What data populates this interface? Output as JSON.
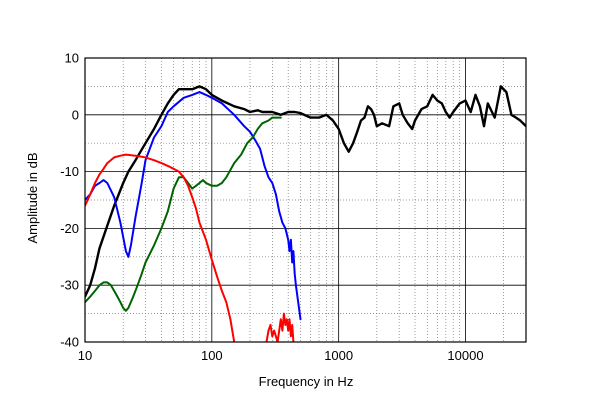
{
  "chart_data": {
    "type": "line",
    "title": "",
    "xlabel": "Frequency in Hz",
    "ylabel": "Amplitude in dB",
    "x_scale": "log",
    "xlim": [
      10,
      30000
    ],
    "ylim": [
      -40,
      10
    ],
    "x_ticks": [
      10,
      100,
      1000,
      10000
    ],
    "x_tick_labels": [
      "10",
      "100",
      "1000",
      "10000"
    ],
    "y_ticks": [
      10,
      0,
      -10,
      -20,
      -30,
      -40
    ],
    "y_tick_labels": [
      "10",
      "0",
      "-10",
      "-20",
      "-30",
      "-40"
    ],
    "grid": true,
    "legend": "none",
    "series": [
      {
        "color": "#000000",
        "points": [
          [
            10,
            -32
          ],
          [
            11,
            -30
          ],
          [
            12,
            -27
          ],
          [
            13,
            -23.5
          ],
          [
            15,
            -19.5
          ],
          [
            17,
            -16
          ],
          [
            20,
            -12
          ],
          [
            22,
            -10
          ],
          [
            25,
            -8
          ],
          [
            30,
            -5
          ],
          [
            35,
            -2.5
          ],
          [
            40,
            0
          ],
          [
            45,
            2
          ],
          [
            50,
            3.5
          ],
          [
            55,
            4.5
          ],
          [
            60,
            4.5
          ],
          [
            70,
            4.5
          ],
          [
            80,
            5
          ],
          [
            90,
            4.5
          ],
          [
            100,
            3.5
          ],
          [
            120,
            2.5
          ],
          [
            150,
            1.5
          ],
          [
            180,
            1
          ],
          [
            200,
            0.5
          ],
          [
            230,
            0.8
          ],
          [
            250,
            0.5
          ],
          [
            300,
            0.5
          ],
          [
            350,
            0
          ],
          [
            400,
            0.5
          ],
          [
            450,
            0.5
          ],
          [
            500,
            0.3
          ],
          [
            600,
            -0.5
          ],
          [
            700,
            -0.5
          ],
          [
            800,
            0
          ],
          [
            900,
            -1
          ],
          [
            1000,
            -2.5
          ],
          [
            1100,
            -5
          ],
          [
            1200,
            -6.5
          ],
          [
            1300,
            -5
          ],
          [
            1400,
            -3
          ],
          [
            1500,
            -1
          ],
          [
            1600,
            -0.5
          ],
          [
            1700,
            1.5
          ],
          [
            1800,
            1
          ],
          [
            1900,
            0
          ],
          [
            2000,
            -2
          ],
          [
            2200,
            -1.5
          ],
          [
            2500,
            -2
          ],
          [
            2700,
            1.5
          ],
          [
            3000,
            2
          ],
          [
            3200,
            0
          ],
          [
            3500,
            -1.5
          ],
          [
            3800,
            -2.5
          ],
          [
            4000,
            -1
          ],
          [
            4500,
            1
          ],
          [
            5000,
            1.5
          ],
          [
            5500,
            3.5
          ],
          [
            6000,
            2.5
          ],
          [
            6500,
            2
          ],
          [
            7000,
            0.5
          ],
          [
            7500,
            -0.5
          ],
          [
            8000,
            0.5
          ],
          [
            9000,
            2
          ],
          [
            10000,
            2.5
          ],
          [
            11000,
            0.5
          ],
          [
            12000,
            3.5
          ],
          [
            13000,
            1.5
          ],
          [
            14000,
            -2
          ],
          [
            15000,
            2
          ],
          [
            17000,
            -0.5
          ],
          [
            19000,
            5
          ],
          [
            21000,
            4
          ],
          [
            23000,
            0
          ],
          [
            25000,
            -0.5
          ],
          [
            27000,
            -1
          ],
          [
            30000,
            -2
          ]
        ]
      },
      {
        "color": "#0000ff",
        "points": [
          [
            10,
            -15
          ],
          [
            11,
            -14
          ],
          [
            12,
            -12.5
          ],
          [
            13,
            -12
          ],
          [
            14,
            -11.5
          ],
          [
            15,
            -12
          ],
          [
            17,
            -14.5
          ],
          [
            19,
            -19
          ],
          [
            21,
            -24
          ],
          [
            22,
            -25
          ],
          [
            23,
            -23
          ],
          [
            25,
            -18
          ],
          [
            28,
            -12
          ],
          [
            30,
            -8
          ],
          [
            35,
            -4
          ],
          [
            40,
            -2
          ],
          [
            45,
            0.5
          ],
          [
            50,
            1.5
          ],
          [
            60,
            3
          ],
          [
            70,
            3.5
          ],
          [
            80,
            4
          ],
          [
            90,
            3.5
          ],
          [
            100,
            3
          ],
          [
            120,
            2
          ],
          [
            150,
            0
          ],
          [
            180,
            -2
          ],
          [
            200,
            -3
          ],
          [
            220,
            -4.5
          ],
          [
            240,
            -6
          ],
          [
            260,
            -9
          ],
          [
            280,
            -11
          ],
          [
            300,
            -12
          ],
          [
            320,
            -14
          ],
          [
            340,
            -17
          ],
          [
            360,
            -19
          ],
          [
            380,
            -20
          ],
          [
            400,
            -22
          ],
          [
            410,
            -24
          ],
          [
            420,
            -22
          ],
          [
            430,
            -26
          ],
          [
            440,
            -24
          ],
          [
            450,
            -28
          ],
          [
            460,
            -30
          ],
          [
            480,
            -33
          ],
          [
            500,
            -36
          ]
        ]
      },
      {
        "color": "#006400",
        "points": [
          [
            10,
            -33
          ],
          [
            11,
            -32
          ],
          [
            12,
            -31
          ],
          [
            13,
            -30
          ],
          [
            14,
            -29.5
          ],
          [
            15,
            -29.5
          ],
          [
            16,
            -30
          ],
          [
            17,
            -31
          ],
          [
            18,
            -32
          ],
          [
            19,
            -33
          ],
          [
            20,
            -34
          ],
          [
            21,
            -34.5
          ],
          [
            22,
            -34
          ],
          [
            24,
            -32
          ],
          [
            26,
            -30
          ],
          [
            28,
            -28
          ],
          [
            30,
            -26
          ],
          [
            35,
            -23
          ],
          [
            40,
            -20
          ],
          [
            45,
            -17
          ],
          [
            50,
            -13
          ],
          [
            55,
            -11
          ],
          [
            60,
            -11
          ],
          [
            65,
            -12
          ],
          [
            70,
            -13
          ],
          [
            75,
            -12.5
          ],
          [
            80,
            -12
          ],
          [
            85,
            -11.5
          ],
          [
            90,
            -12
          ],
          [
            100,
            -12.5
          ],
          [
            110,
            -12.5
          ],
          [
            120,
            -12
          ],
          [
            130,
            -11
          ],
          [
            150,
            -8.5
          ],
          [
            170,
            -7
          ],
          [
            190,
            -5
          ],
          [
            210,
            -4
          ],
          [
            230,
            -2.5
          ],
          [
            250,
            -1.5
          ],
          [
            280,
            -1
          ],
          [
            300,
            -0.5
          ],
          [
            350,
            -0.5
          ]
        ]
      },
      {
        "color": "#ff0000",
        "points": [
          [
            10,
            -16
          ],
          [
            11,
            -14
          ],
          [
            12,
            -12
          ],
          [
            13,
            -10.5
          ],
          [
            14,
            -9.5
          ],
          [
            15,
            -8.5
          ],
          [
            17,
            -7.5
          ],
          [
            19,
            -7.2
          ],
          [
            21,
            -7
          ],
          [
            25,
            -7.2
          ],
          [
            30,
            -7.5
          ],
          [
            35,
            -8
          ],
          [
            40,
            -8.5
          ],
          [
            45,
            -9
          ],
          [
            50,
            -9.5
          ],
          [
            55,
            -10
          ],
          [
            60,
            -11
          ],
          [
            65,
            -12.5
          ],
          [
            70,
            -14.5
          ],
          [
            75,
            -16.5
          ],
          [
            80,
            -19
          ],
          [
            90,
            -22
          ],
          [
            100,
            -25.5
          ],
          [
            110,
            -28.5
          ],
          [
            120,
            -31
          ],
          [
            130,
            -33
          ],
          [
            140,
            -36
          ],
          [
            150,
            -40
          ]
        ]
      },
      {
        "color": "#ff0000",
        "points": [
          [
            270,
            -40
          ],
          [
            280,
            -38
          ],
          [
            290,
            -37
          ],
          [
            300,
            -39
          ],
          [
            310,
            -38
          ],
          [
            320,
            -39
          ],
          [
            330,
            -40
          ],
          [
            340,
            -38
          ],
          [
            350,
            -36
          ],
          [
            360,
            -38
          ],
          [
            370,
            -35
          ],
          [
            380,
            -37
          ],
          [
            390,
            -36
          ],
          [
            400,
            -38
          ],
          [
            410,
            -36
          ],
          [
            420,
            -39
          ],
          [
            430,
            -37
          ],
          [
            440,
            -40
          ]
        ]
      }
    ]
  }
}
